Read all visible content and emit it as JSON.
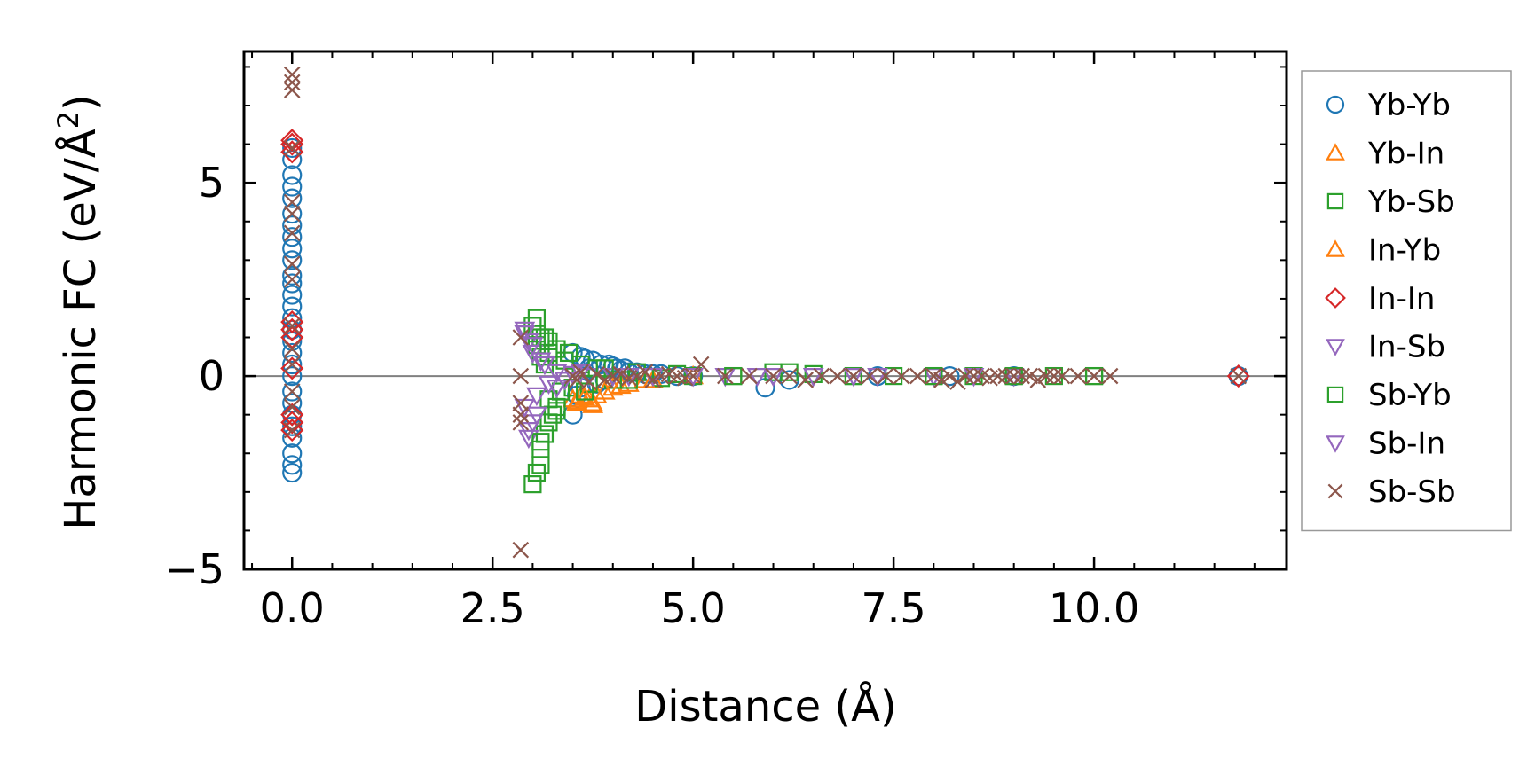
{
  "chart_data": {
    "type": "scatter",
    "title": "",
    "xlabel": "Distance (Å)",
    "ylabel": "Harmonic FC (eV/Å²)",
    "ylabel_main": "Harmonic FC (eV/Å",
    "ylabel_sup": "2",
    "ylabel_end": ")",
    "xlim": [
      -0.6,
      12.4
    ],
    "ylim": [
      -5.0,
      8.4
    ],
    "xticks": [
      0.0,
      2.5,
      5.0,
      7.5,
      10.0
    ],
    "xtick_labels": [
      "0.0",
      "2.5",
      "5.0",
      "7.5",
      "10.0"
    ],
    "yticks": [
      -5,
      0,
      5
    ],
    "ytick_labels": [
      "−5",
      "0",
      "5"
    ],
    "zero_line": 0,
    "legend_position": "right-outside",
    "series": [
      {
        "name": "Yb-Yb",
        "marker": "circle",
        "color": "#1f77b4",
        "x": [
          0,
          0,
          0,
          0,
          0,
          0,
          0,
          0,
          0,
          0,
          0,
          0,
          0,
          0,
          0,
          0,
          0,
          0,
          0,
          0,
          0,
          0,
          0,
          0,
          0,
          0,
          0,
          0,
          3.5,
          3.5,
          3.55,
          3.6,
          3.6,
          3.65,
          3.7,
          3.75,
          3.8,
          3.85,
          3.9,
          3.95,
          4.0,
          4.05,
          4.1,
          4.15,
          4.2,
          4.3,
          4.4,
          4.5,
          4.6,
          4.8,
          5.0,
          5.9,
          6.2,
          7.3,
          8.2,
          9.0,
          11.8
        ],
        "y": [
          -2.5,
          -2.3,
          -2.0,
          -1.6,
          -1.3,
          -1.0,
          -0.7,
          -0.4,
          0.0,
          0.3,
          0.6,
          0.9,
          1.2,
          1.5,
          1.8,
          2.1,
          2.4,
          2.6,
          3.0,
          3.3,
          3.6,
          3.9,
          4.2,
          4.6,
          4.9,
          5.2,
          5.6,
          5.9,
          -1.0,
          0.6,
          -0.5,
          0.5,
          -0.3,
          0.45,
          0.2,
          0.4,
          -0.2,
          0.3,
          -0.1,
          0.3,
          0.25,
          0.2,
          0.15,
          0.2,
          0.1,
          0.1,
          0.05,
          0.05,
          0.05,
          0.0,
          0.0,
          -0.3,
          -0.1,
          0.0,
          0.0,
          0.0,
          0.0
        ]
      },
      {
        "name": "Yb-In",
        "marker": "triangle-up",
        "color": "#ff7f0e",
        "x": [
          3.5,
          3.55,
          3.6,
          3.7,
          3.75,
          3.8,
          4.0,
          4.2,
          4.5,
          5.0
        ],
        "y": [
          -0.6,
          -0.7,
          -0.5,
          -0.6,
          -0.75,
          -0.5,
          -0.3,
          -0.2,
          -0.1,
          0.0
        ]
      },
      {
        "name": "Yb-Sb",
        "marker": "square",
        "color": "#2ca02c",
        "x": [
          3.0,
          3.0,
          3.05,
          3.05,
          3.05,
          3.1,
          3.1,
          3.1,
          3.1,
          3.15,
          3.15,
          3.15,
          3.2,
          3.2,
          3.2,
          3.25,
          3.3,
          3.3,
          3.35,
          3.4,
          3.5,
          3.6,
          3.7,
          3.8,
          4.0,
          4.3,
          4.6,
          5.0,
          5.5,
          6.0,
          6.5,
          7.0,
          7.5,
          8.0,
          8.5,
          9.0,
          9.5,
          10.0
        ],
        "y": [
          1.3,
          -2.8,
          1.5,
          -2.5,
          0.8,
          -2.3,
          -1.9,
          1.0,
          0.5,
          -1.5,
          0.3,
          1.0,
          -1.2,
          0.6,
          -0.6,
          -1.0,
          0.7,
          -0.8,
          -0.4,
          0.4,
          -0.3,
          0.3,
          -0.2,
          0.2,
          -0.1,
          0.1,
          -0.05,
          0.0,
          0.0,
          0.1,
          0.05,
          0.0,
          0.0,
          0.0,
          0.0,
          0.0,
          0.0,
          0.0
        ]
      },
      {
        "name": "In-Yb",
        "marker": "triangle-up",
        "color": "#ff7f0e",
        "x": [
          3.55,
          3.65,
          3.75,
          3.9,
          4.1,
          4.4
        ],
        "y": [
          -0.65,
          -0.55,
          -0.7,
          -0.4,
          -0.25,
          -0.1
        ]
      },
      {
        "name": "In-In",
        "marker": "diamond",
        "color": "#d62728",
        "x": [
          0,
          0,
          0,
          0,
          0,
          0,
          0,
          0,
          0,
          0,
          11.8
        ],
        "y": [
          6.0,
          5.8,
          6.1,
          1.2,
          1.4,
          1.0,
          -1.2,
          -1.4,
          -1.0,
          0.2,
          0.0
        ]
      },
      {
        "name": "In-Sb",
        "marker": "triangle-down",
        "color": "#9467bd",
        "x": [
          2.9,
          2.9,
          2.95,
          2.95,
          3.0,
          3.0,
          3.05,
          3.1,
          3.2,
          3.3,
          3.4,
          3.5,
          3.7,
          4.0,
          4.5,
          5.0,
          5.4,
          5.8,
          6.5,
          7.3,
          8.0,
          9.0
        ],
        "y": [
          1.2,
          -0.8,
          0.9,
          -1.6,
          0.6,
          -1.2,
          -0.5,
          0.4,
          -0.2,
          0.1,
          -0.1,
          0.05,
          0.0,
          0.0,
          0.0,
          0.0,
          0.0,
          0.0,
          0.0,
          0.0,
          0.0,
          0.0
        ]
      },
      {
        "name": "Sb-Yb",
        "marker": "square",
        "color": "#2ca02c",
        "x": [
          3.05,
          3.1,
          3.2,
          3.3,
          3.45,
          3.65,
          3.9,
          4.2,
          4.8,
          5.5,
          6.2,
          7.0,
          8.0,
          9.0,
          10.0
        ],
        "y": [
          1.1,
          -1.7,
          0.9,
          -0.9,
          0.6,
          -0.4,
          0.2,
          -0.1,
          0.05,
          0.0,
          0.1,
          0.0,
          0.0,
          0.0,
          0.0
        ]
      },
      {
        "name": "Sb-In",
        "marker": "triangle-down",
        "color": "#9467bd",
        "x": [
          2.9,
          2.95,
          3.0,
          3.05,
          3.15,
          3.3,
          3.6,
          4.2,
          5.0,
          6.0,
          7.0,
          8.5
        ],
        "y": [
          1.1,
          -1.4,
          0.8,
          -1.0,
          0.3,
          -0.3,
          0.1,
          0.0,
          0.0,
          0.0,
          0.0,
          0.0
        ]
      },
      {
        "name": "Sb-Sb",
        "marker": "x",
        "color": "#8c564b",
        "x": [
          0,
          0,
          0,
          0,
          0,
          0,
          0,
          0,
          0,
          0,
          0,
          0,
          0,
          0,
          0,
          2.85,
          2.85,
          2.85,
          2.85,
          2.85,
          2.85,
          3.5,
          3.55,
          3.6,
          3.7,
          3.8,
          3.9,
          4.0,
          4.1,
          4.2,
          4.3,
          4.4,
          4.5,
          4.6,
          4.7,
          4.8,
          4.9,
          5.0,
          5.1,
          5.4,
          5.7,
          6.0,
          6.2,
          6.4,
          6.6,
          6.8,
          7.0,
          7.2,
          7.4,
          7.6,
          7.8,
          8.0,
          8.1,
          8.2,
          8.3,
          8.4,
          8.5,
          8.6,
          8.7,
          8.8,
          8.9,
          9.0,
          9.1,
          9.2,
          9.3,
          9.4,
          9.5,
          9.6,
          9.8,
          10.0,
          10.2,
          11.8
        ],
        "y": [
          7.8,
          7.6,
          7.4,
          5.9,
          4.5,
          4.2,
          3.7,
          2.9,
          2.5,
          1.3,
          0.7,
          0.3,
          -0.4,
          -0.8,
          -1.4,
          -4.5,
          1.0,
          0.0,
          -0.7,
          -1.0,
          -1.2,
          0.0,
          -0.1,
          0.1,
          -0.15,
          0.05,
          -0.1,
          0.0,
          0.05,
          -0.05,
          0.0,
          0.1,
          -0.1,
          0.0,
          0.05,
          0.0,
          -0.05,
          0.0,
          0.3,
          0.0,
          0.0,
          0.0,
          0.0,
          -0.1,
          0.0,
          0.0,
          0.0,
          0.0,
          0.0,
          0.0,
          0.0,
          0.0,
          -0.1,
          0.0,
          -0.15,
          0.0,
          0.0,
          0.0,
          -0.05,
          0.0,
          0.0,
          0.0,
          0.0,
          0.0,
          -0.1,
          0.0,
          0.0,
          0.0,
          0.0,
          0.0,
          0.0,
          0.0
        ]
      }
    ]
  }
}
